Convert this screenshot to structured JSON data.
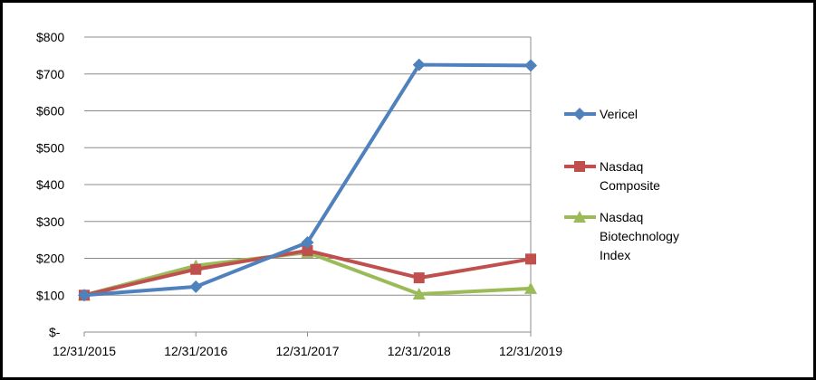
{
  "chart_data": {
    "type": "line",
    "title": "",
    "xlabel": "",
    "ylabel": "",
    "categories": [
      "12/31/2015",
      "12/31/2016",
      "12/31/2017",
      "12/31/2018",
      "12/31/2019"
    ],
    "ylim": [
      0,
      800
    ],
    "yticks": [
      0,
      100,
      200,
      300,
      400,
      500,
      600,
      700,
      800
    ],
    "ytick_labels": [
      "$-",
      "$100",
      "$200",
      "$300",
      "$400",
      "$500",
      "$600",
      "$700",
      "$800"
    ],
    "grid": true,
    "legend_position": "right",
    "series": [
      {
        "name": "Vericel",
        "color": "#4F81BD",
        "marker": "diamond",
        "values": [
          100,
          123,
          243,
          725,
          723
        ]
      },
      {
        "name": "Nasdaq Composite",
        "color": "#C0504D",
        "marker": "square",
        "values": [
          100,
          170,
          221,
          147,
          198
        ]
      },
      {
        "name": "Nasdaq Biotechnology Index",
        "color": "#9BBB59",
        "marker": "triangle",
        "values": [
          100,
          180,
          216,
          103,
          118
        ]
      }
    ]
  },
  "legend": {
    "items": [
      {
        "lines": [
          "Vericel"
        ]
      },
      {
        "lines": [
          "Nasdaq",
          "Composite"
        ]
      },
      {
        "lines": [
          "Nasdaq",
          "Biotechnology",
          "Index"
        ]
      }
    ]
  }
}
